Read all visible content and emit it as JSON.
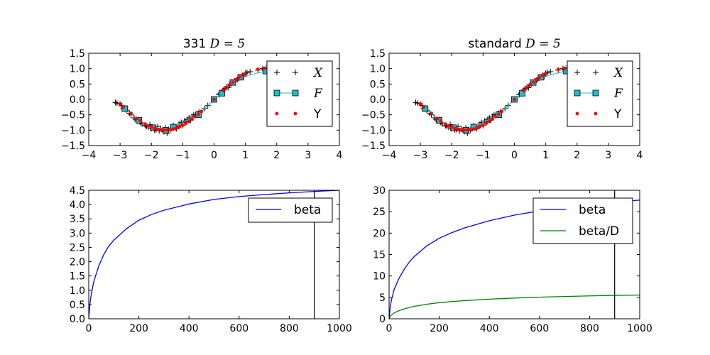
{
  "colors": {
    "cross": "#000000",
    "fit_line": "#17becf",
    "fit_marker": "#17becf",
    "points": "#ff0000",
    "beta": "#0000ff",
    "beta_over_d": "#008000",
    "vline": "#000000"
  },
  "chart_data": [
    {
      "id": "top-left",
      "type": "scatter",
      "title_prefix": "331 ",
      "title_math": "D = 5",
      "xlim": [
        -4,
        4
      ],
      "ylim": [
        -1.5,
        1.5
      ],
      "xticks": [
        "−4",
        "−3",
        "−2",
        "−1",
        "0",
        "1",
        "2",
        "3",
        "4"
      ],
      "yticks": [
        "−1.5",
        "−1.0",
        "−0.5",
        "0.0",
        "0.5",
        "1.0",
        "1.5"
      ],
      "legend_position": "upper-right",
      "legend": [
        {
          "label": "X",
          "math": true,
          "marker": "plus"
        },
        {
          "label": "F",
          "math": true,
          "marker": "square-line"
        },
        {
          "label": "Y",
          "math": false,
          "marker": "dot"
        }
      ],
      "series": [
        {
          "name": "X",
          "kind": "plus",
          "x": [
            -3.15,
            -3.1,
            -3.0,
            -2.95,
            -2.9,
            -2.8,
            -2.7,
            -2.65,
            -2.55,
            -2.5,
            -2.45,
            -2.4,
            -2.35,
            -2.3,
            -2.2,
            -2.15,
            -2.1,
            -2.05,
            -2.0,
            -1.95,
            -1.9,
            -1.85,
            -1.8,
            -1.75,
            -1.7,
            -1.6,
            -1.55,
            -1.5,
            -1.45,
            -1.4,
            -1.35,
            -1.3,
            -1.25,
            -1.2,
            -1.15,
            -1.1,
            -1.05,
            -1.0,
            -0.95,
            -0.9,
            -0.85,
            -0.8,
            -0.75,
            -0.7,
            -0.65,
            -0.55,
            -0.5,
            -0.45,
            -0.3,
            -0.2,
            0.0,
            0.15,
            0.2,
            0.25,
            0.3,
            0.35,
            0.4,
            0.45,
            0.5,
            0.55,
            0.6,
            0.65,
            0.7,
            0.75,
            0.8,
            0.85,
            0.9,
            0.95,
            1.0,
            1.05,
            1.15,
            1.4,
            1.55,
            1.6,
            1.7,
            1.75,
            1.8
          ],
          "y": [
            -0.1,
            -0.12,
            -0.15,
            -0.2,
            -0.3,
            -0.35,
            -0.45,
            -0.5,
            -0.6,
            -0.65,
            -0.7,
            -0.68,
            -0.75,
            -0.8,
            -0.85,
            -0.88,
            -0.9,
            -0.82,
            -0.95,
            -0.92,
            -1.0,
            -0.98,
            -0.88,
            -1.02,
            -0.95,
            -1.05,
            -0.92,
            -1.1,
            -0.98,
            -1.0,
            -0.95,
            -0.85,
            -0.9,
            -0.95,
            -0.88,
            -0.8,
            -0.75,
            -0.85,
            -0.7,
            -0.72,
            -0.65,
            -0.6,
            -0.68,
            -0.55,
            -0.5,
            -0.48,
            -0.45,
            -0.4,
            -0.3,
            -0.2,
            0.0,
            0.15,
            0.2,
            0.25,
            0.3,
            0.35,
            0.4,
            0.38,
            0.48,
            0.5,
            0.55,
            0.6,
            0.62,
            0.65,
            0.7,
            0.72,
            0.78,
            0.75,
            0.85,
            0.88,
            0.9,
            0.95,
            1.0,
            0.98,
            1.05,
            1.1,
            1.08
          ]
        },
        {
          "name": "F",
          "kind": "square-line",
          "x": [
            -2.85,
            -2.4,
            -1.95,
            -1.55,
            -1.3,
            -0.5,
            0.0,
            0.25,
            0.6,
            0.85,
            1.65
          ],
          "y": [
            -0.3,
            -0.68,
            -0.92,
            -1.0,
            -0.9,
            -0.5,
            0.0,
            0.2,
            0.55,
            0.72,
            0.92
          ]
        },
        {
          "name": "Y",
          "kind": "dot",
          "x": [
            -3.0,
            -2.9,
            -2.65,
            -2.45,
            -2.35,
            -2.2,
            -2.1,
            -2.0,
            -1.9,
            -1.8,
            -1.7,
            -1.6,
            -1.5,
            -1.4,
            -1.3,
            -1.2,
            -1.1,
            -1.0,
            -0.9,
            -0.8,
            -0.7,
            -0.6,
            -0.5,
            -0.4,
            0.0,
            0.3,
            0.4,
            0.5,
            0.6,
            0.7,
            0.8,
            0.9,
            1.0,
            1.4,
            1.6
          ],
          "y": [
            -0.15,
            -0.25,
            -0.45,
            -0.62,
            -0.7,
            -0.8,
            -0.86,
            -0.9,
            -0.95,
            -0.97,
            -0.99,
            -1.0,
            -0.99,
            -0.98,
            -0.96,
            -0.93,
            -0.89,
            -0.84,
            -0.78,
            -0.72,
            -0.64,
            -0.56,
            -0.48,
            -0.39,
            0.0,
            0.29,
            0.39,
            0.48,
            0.56,
            0.64,
            0.72,
            0.78,
            0.84,
            0.98,
            1.0
          ]
        }
      ]
    },
    {
      "id": "top-right",
      "type": "scatter",
      "title_prefix": "standard ",
      "title_math": "D = 5",
      "xlim": [
        -4,
        4
      ],
      "ylim": [
        -1.5,
        1.5
      ],
      "xticks": [
        "−4",
        "−3",
        "−2",
        "−1",
        "0",
        "1",
        "2",
        "3",
        "4"
      ],
      "yticks": [
        "−1.5",
        "−1.0",
        "−0.5",
        "0.0",
        "0.5",
        "1.0",
        "1.5"
      ],
      "legend_position": "upper-right",
      "legend": [
        {
          "label": "X",
          "math": true,
          "marker": "plus"
        },
        {
          "label": "F",
          "math": true,
          "marker": "square-line"
        },
        {
          "label": "Y",
          "math": false,
          "marker": "dot"
        }
      ],
      "series": [
        {
          "name": "X",
          "kind": "plus",
          "x": [
            -3.15,
            -3.1,
            -3.0,
            -2.95,
            -2.9,
            -2.8,
            -2.7,
            -2.65,
            -2.55,
            -2.5,
            -2.45,
            -2.4,
            -2.35,
            -2.3,
            -2.2,
            -2.15,
            -2.1,
            -2.05,
            -2.0,
            -1.95,
            -1.9,
            -1.85,
            -1.8,
            -1.75,
            -1.7,
            -1.6,
            -1.55,
            -1.5,
            -1.45,
            -1.4,
            -1.35,
            -1.3,
            -1.25,
            -1.2,
            -1.15,
            -1.1,
            -1.05,
            -1.0,
            -0.95,
            -0.9,
            -0.85,
            -0.8,
            -0.75,
            -0.7,
            -0.65,
            -0.55,
            -0.5,
            -0.45,
            -0.3,
            -0.2,
            0.0,
            0.15,
            0.2,
            0.25,
            0.3,
            0.35,
            0.4,
            0.45,
            0.5,
            0.55,
            0.6,
            0.65,
            0.7,
            0.75,
            0.8,
            0.85,
            0.9,
            0.95,
            1.0,
            1.05,
            1.15,
            1.4,
            1.55,
            1.6,
            1.7,
            1.75,
            1.8
          ],
          "y": [
            -0.1,
            -0.12,
            -0.15,
            -0.2,
            -0.3,
            -0.35,
            -0.45,
            -0.5,
            -0.6,
            -0.65,
            -0.7,
            -0.68,
            -0.75,
            -0.8,
            -0.85,
            -0.88,
            -0.9,
            -0.82,
            -0.95,
            -0.92,
            -1.0,
            -0.98,
            -0.88,
            -1.02,
            -0.95,
            -1.05,
            -0.92,
            -1.1,
            -0.98,
            -1.0,
            -0.95,
            -0.85,
            -0.9,
            -0.95,
            -0.88,
            -0.8,
            -0.75,
            -0.85,
            -0.7,
            -0.72,
            -0.65,
            -0.6,
            -0.68,
            -0.55,
            -0.5,
            -0.48,
            -0.45,
            -0.4,
            -0.3,
            -0.2,
            0.0,
            0.15,
            0.2,
            0.25,
            0.3,
            0.35,
            0.4,
            0.38,
            0.48,
            0.5,
            0.55,
            0.6,
            0.62,
            0.65,
            0.7,
            0.72,
            0.78,
            0.75,
            0.85,
            0.88,
            0.9,
            0.95,
            1.0,
            0.98,
            1.05,
            1.1,
            1.08
          ]
        },
        {
          "name": "F",
          "kind": "square-line",
          "x": [
            -2.85,
            -2.4,
            -1.95,
            -1.55,
            -1.3,
            -0.5,
            0.0,
            0.25,
            0.6,
            0.85,
            1.65
          ],
          "y": [
            -0.3,
            -0.68,
            -0.92,
            -1.0,
            -0.9,
            -0.5,
            0.0,
            0.2,
            0.55,
            0.72,
            0.92
          ]
        },
        {
          "name": "Y",
          "kind": "dot",
          "x": [
            -3.0,
            -2.9,
            -2.65,
            -2.45,
            -2.35,
            -2.2,
            -2.1,
            -2.0,
            -1.9,
            -1.8,
            -1.7,
            -1.6,
            -1.5,
            -1.4,
            -1.3,
            -1.2,
            -1.1,
            -1.0,
            -0.9,
            -0.8,
            -0.7,
            -0.6,
            -0.5,
            -0.4,
            0.0,
            0.3,
            0.4,
            0.5,
            0.6,
            0.7,
            0.8,
            0.9,
            1.0,
            1.4,
            1.6
          ],
          "y": [
            -0.15,
            -0.25,
            -0.45,
            -0.62,
            -0.7,
            -0.8,
            -0.86,
            -0.9,
            -0.95,
            -0.97,
            -0.99,
            -1.0,
            -0.99,
            -0.98,
            -0.96,
            -0.93,
            -0.89,
            -0.84,
            -0.78,
            -0.72,
            -0.64,
            -0.56,
            -0.48,
            -0.39,
            0.0,
            0.29,
            0.39,
            0.48,
            0.56,
            0.64,
            0.72,
            0.78,
            0.84,
            0.98,
            1.0
          ]
        }
      ]
    },
    {
      "id": "bottom-left",
      "type": "line",
      "title_prefix": "",
      "title_math": "",
      "xlim": [
        0,
        1000
      ],
      "ylim": [
        0,
        4.5
      ],
      "xticks": [
        "0",
        "200",
        "400",
        "600",
        "800",
        "1000"
      ],
      "yticks": [
        "0.0",
        "0.5",
        "1.0",
        "1.5",
        "2.0",
        "2.5",
        "3.0",
        "3.5",
        "4.0",
        "4.5"
      ],
      "legend_position": "upper-right",
      "legend": [
        {
          "label": "beta",
          "math": false,
          "marker": "line",
          "color_key": "beta"
        }
      ],
      "vline_x": 900,
      "series": [
        {
          "name": "beta",
          "kind": "line",
          "color_key": "beta",
          "x": [
            0,
            5,
            10,
            20,
            40,
            60,
            80,
            100,
            150,
            200,
            250,
            300,
            400,
            500,
            600,
            700,
            800,
            900,
            1000
          ],
          "y": [
            0.0,
            0.56,
            0.85,
            1.3,
            1.85,
            2.25,
            2.55,
            2.75,
            3.15,
            3.45,
            3.65,
            3.8,
            4.02,
            4.18,
            4.28,
            4.35,
            4.41,
            4.46,
            4.5
          ]
        }
      ]
    },
    {
      "id": "bottom-right",
      "type": "line",
      "title_prefix": "",
      "title_math": "",
      "xlim": [
        0,
        1000
      ],
      "ylim": [
        0,
        30
      ],
      "xticks": [
        "0",
        "200",
        "400",
        "600",
        "800",
        "1000"
      ],
      "yticks": [
        "0",
        "5",
        "10",
        "15",
        "20",
        "25",
        "30"
      ],
      "legend_position": "upper-right",
      "legend": [
        {
          "label": "beta",
          "math": false,
          "marker": "line",
          "color_key": "beta"
        },
        {
          "label": "beta/D",
          "math": false,
          "marker": "line",
          "color_key": "beta_over_d"
        }
      ],
      "vline_x": 900,
      "series": [
        {
          "name": "beta",
          "kind": "line",
          "color_key": "beta",
          "x": [
            0,
            5,
            10,
            20,
            40,
            60,
            80,
            100,
            150,
            200,
            250,
            300,
            400,
            500,
            600,
            700,
            800,
            900,
            1000
          ],
          "y": [
            0.0,
            3.0,
            4.5,
            6.8,
            9.5,
            11.5,
            13.2,
            14.5,
            17.0,
            18.8,
            20.1,
            21.2,
            22.9,
            24.2,
            25.2,
            26.0,
            26.7,
            27.3,
            27.7
          ]
        },
        {
          "name": "beta/D",
          "kind": "line",
          "color_key": "beta_over_d",
          "x": [
            0,
            5,
            10,
            20,
            40,
            60,
            80,
            100,
            150,
            200,
            250,
            300,
            400,
            500,
            600,
            700,
            800,
            900,
            1000
          ],
          "y": [
            0.0,
            0.6,
            0.9,
            1.36,
            1.9,
            2.3,
            2.64,
            2.9,
            3.4,
            3.76,
            4.02,
            4.24,
            4.58,
            4.84,
            5.04,
            5.2,
            5.34,
            5.46,
            5.54
          ]
        }
      ]
    }
  ]
}
